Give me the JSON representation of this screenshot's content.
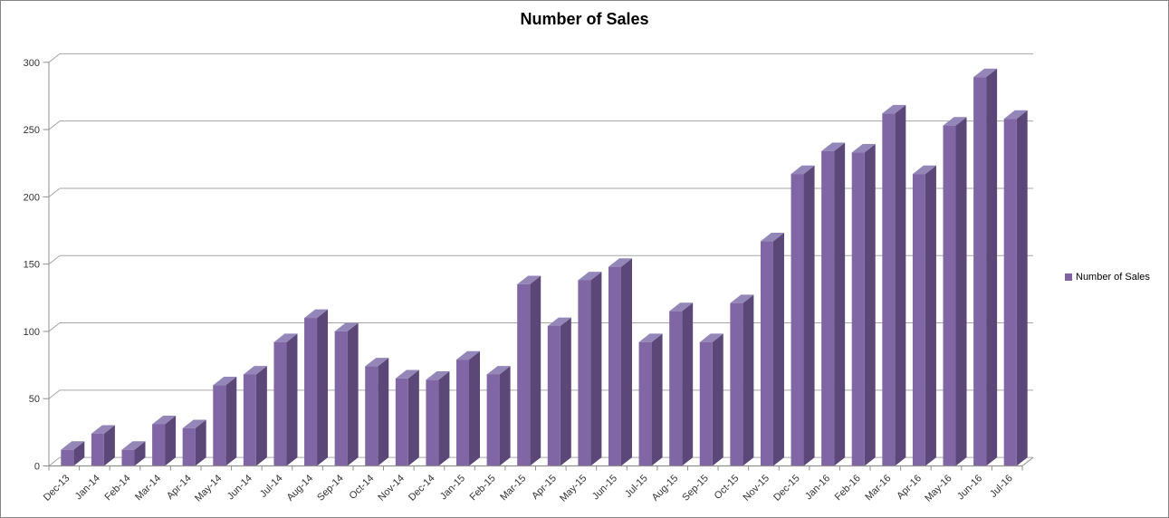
{
  "chart_data": {
    "type": "bar",
    "style": "3d-column",
    "title": "Number of Sales",
    "xlabel": "",
    "ylabel": "",
    "categories": [
      "Dec-13",
      "Jan-14",
      "Feb-14",
      "Mar-14",
      "Apr-14",
      "May-14",
      "Jun-14",
      "Jul-14",
      "Aug-14",
      "Sep-14",
      "Oct-14",
      "Nov-14",
      "Dec-14",
      "Jan-15",
      "Feb-15",
      "Mar-15",
      "Apr-15",
      "May-15",
      "Jun-15",
      "Jul-15",
      "Aug-15",
      "Sep-15",
      "Oct-15",
      "Nov-15",
      "Dec-15",
      "Jan-16",
      "Feb-16",
      "Mar-16",
      "Apr-16",
      "May-16",
      "Jun-16",
      "Jul-16"
    ],
    "series": [
      {
        "name": "Number of Sales",
        "values": [
          12,
          24,
          12,
          31,
          28,
          60,
          68,
          92,
          110,
          100,
          74,
          65,
          64,
          79,
          68,
          135,
          104,
          138,
          148,
          92,
          115,
          92,
          121,
          167,
          217,
          234,
          233,
          262,
          217,
          253,
          289,
          258
        ]
      }
    ],
    "ylim": [
      0,
      300
    ],
    "yticks": [
      0,
      50,
      100,
      150,
      200,
      250,
      300
    ],
    "grid": true,
    "legend_position": "right"
  },
  "colors": {
    "bar_front": "#8066A4",
    "bar_side": "#5C4878",
    "bar_top": "#9486B8",
    "gridline": "#A6A6A6",
    "axis": "#8F8F8F",
    "tick_label": "#333333",
    "title": "#000000",
    "legend_marker": "#8064A2",
    "frame_border": "#848484",
    "background": "#FFFFFF"
  }
}
